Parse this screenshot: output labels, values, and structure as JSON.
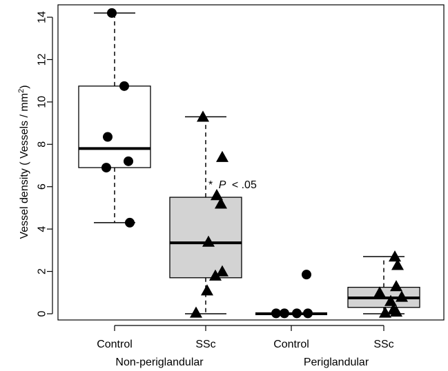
{
  "chart_data": {
    "type": "box",
    "ylabel": {
      "prefix": "Vessel density ( Vessels / mm",
      "superscript": "2",
      "suffix": ")"
    },
    "ylim": [
      -0.3,
      14.6
    ],
    "yticks": [
      0,
      2,
      4,
      6,
      8,
      10,
      12,
      14
    ],
    "categories": [
      "Control",
      "SSc",
      "Control",
      "SSc"
    ],
    "groups": [
      "Non-periglandular",
      "Periglandular"
    ],
    "annotation": {
      "star": "*",
      "p": "P",
      "rest": "< .05"
    },
    "boxes": [
      {
        "label": "Control",
        "group": "Non-periglandular",
        "whisker_low": 4.3,
        "q1": 6.9,
        "median": 7.8,
        "q3": 10.75,
        "whisker_high": 14.2,
        "fill": "#ffffff",
        "marker": "circle",
        "points": [
          14.2,
          10.75,
          8.35,
          7.2,
          6.9,
          4.3
        ]
      },
      {
        "label": "SSc",
        "group": "Non-periglandular",
        "whisker_low": 0.0,
        "q1": 1.7,
        "median": 3.35,
        "q3": 5.5,
        "whisker_high": 9.3,
        "fill": "#d3d3d3",
        "marker": "triangle",
        "points": [
          9.3,
          7.4,
          5.6,
          5.2,
          3.4,
          2.0,
          1.8,
          1.1,
          0.05
        ]
      },
      {
        "label": "Control",
        "group": "Periglandular",
        "whisker_low": 0.0,
        "q1": 0.0,
        "median": 0.0,
        "q3": 0.0,
        "whisker_high": 0.0,
        "fill": "#ffffff",
        "marker": "circle",
        "points": [
          1.85,
          0.02,
          0.02,
          0.02,
          0.02
        ]
      },
      {
        "label": "SSc",
        "group": "Periglandular",
        "whisker_low": 0.0,
        "q1": 0.3,
        "median": 0.75,
        "q3": 1.25,
        "whisker_high": 2.7,
        "fill": "#d3d3d3",
        "marker": "triangle",
        "points": [
          2.7,
          2.3,
          1.3,
          1.0,
          0.8,
          0.6,
          0.2,
          0.1,
          0.05
        ]
      }
    ]
  }
}
